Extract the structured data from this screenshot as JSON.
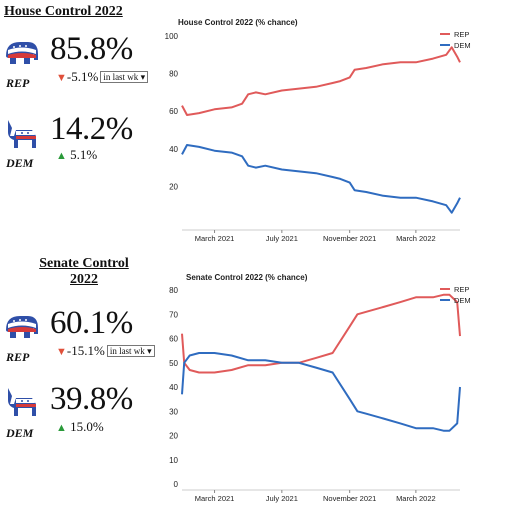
{
  "house": {
    "title": "House Control 2022",
    "rep": {
      "label": "REP",
      "pct": "85.8%",
      "delta": "-5.1%",
      "select": "in last wk"
    },
    "dem": {
      "label": "DEM",
      "pct": "14.2%",
      "delta": "5.1%"
    }
  },
  "senate": {
    "title_line1": "Senate Control",
    "title_line2": "2022",
    "rep": {
      "label": "REP",
      "pct": "60.1%",
      "delta": "-15.1%",
      "select": "in last wk"
    },
    "dem": {
      "label": "DEM",
      "pct": "39.8%",
      "delta": "15.0%"
    }
  },
  "colors": {
    "rep": "#e05a5a",
    "dem": "#2f6cc0",
    "down": "#e0503a",
    "up": "#2a9a3a"
  },
  "icons": {
    "rep": "elephant-icon",
    "dem": "donkey-icon"
  },
  "chart_data": [
    {
      "type": "line",
      "title": "House Control 2022 (% chance)",
      "xlabel": "",
      "ylabel": "",
      "x_ticks": [
        "March 2021",
        "July 2021",
        "November 2021",
        "March 2022"
      ],
      "x_domain": [
        "2021-01-01",
        "2022-05-20"
      ],
      "ylim": [
        0,
        100
      ],
      "yticks": [
        20,
        40,
        60,
        80,
        100
      ],
      "legend": "top-right",
      "series": [
        {
          "name": "REP",
          "color": "#e05a5a",
          "points": [
            [
              "2021-01-01",
              63
            ],
            [
              "2021-01-10",
              58
            ],
            [
              "2021-02-01",
              59
            ],
            [
              "2021-03-01",
              61
            ],
            [
              "2021-04-01",
              62
            ],
            [
              "2021-04-20",
              64
            ],
            [
              "2021-05-01",
              69
            ],
            [
              "2021-05-15",
              70
            ],
            [
              "2021-06-01",
              69
            ],
            [
              "2021-07-01",
              71
            ],
            [
              "2021-08-01",
              72
            ],
            [
              "2021-09-01",
              73
            ],
            [
              "2021-10-01",
              75
            ],
            [
              "2021-10-15",
              76
            ],
            [
              "2021-11-01",
              78
            ],
            [
              "2021-11-10",
              82
            ],
            [
              "2021-12-01",
              83
            ],
            [
              "2022-01-01",
              85
            ],
            [
              "2022-02-01",
              86
            ],
            [
              "2022-03-01",
              86
            ],
            [
              "2022-04-01",
              88
            ],
            [
              "2022-04-25",
              90
            ],
            [
              "2022-05-05",
              94
            ],
            [
              "2022-05-15",
              89
            ],
            [
              "2022-05-20",
              86
            ]
          ]
        },
        {
          "name": "DEM",
          "color": "#2f6cc0",
          "points": [
            [
              "2021-01-01",
              37
            ],
            [
              "2021-01-10",
              42
            ],
            [
              "2021-02-01",
              41
            ],
            [
              "2021-03-01",
              39
            ],
            [
              "2021-04-01",
              38
            ],
            [
              "2021-04-20",
              36
            ],
            [
              "2021-05-01",
              31
            ],
            [
              "2021-05-15",
              30
            ],
            [
              "2021-06-01",
              31
            ],
            [
              "2021-07-01",
              29
            ],
            [
              "2021-08-01",
              28
            ],
            [
              "2021-09-01",
              27
            ],
            [
              "2021-10-01",
              25
            ],
            [
              "2021-10-15",
              24
            ],
            [
              "2021-11-01",
              22
            ],
            [
              "2021-11-10",
              18
            ],
            [
              "2021-12-01",
              17
            ],
            [
              "2022-01-01",
              15
            ],
            [
              "2022-02-01",
              14
            ],
            [
              "2022-03-01",
              14
            ],
            [
              "2022-04-01",
              12
            ],
            [
              "2022-04-25",
              10
            ],
            [
              "2022-05-05",
              6
            ],
            [
              "2022-05-15",
              11
            ],
            [
              "2022-05-20",
              14
            ]
          ]
        }
      ]
    },
    {
      "type": "line",
      "title": "Senate Control 2022 (% chance)",
      "xlabel": "",
      "ylabel": "",
      "x_ticks": [
        "March 2021",
        "July 2021",
        "November 2021",
        "March 2022"
      ],
      "x_domain": [
        "2021-01-01",
        "2022-05-20"
      ],
      "ylim": [
        0,
        80
      ],
      "yticks": [
        0,
        10,
        20,
        30,
        40,
        50,
        60,
        70,
        80
      ],
      "legend": "top-right",
      "series": [
        {
          "name": "REP",
          "color": "#e05a5a",
          "points": [
            [
              "2021-01-01",
              62
            ],
            [
              "2021-01-05",
              50
            ],
            [
              "2021-01-15",
              47
            ],
            [
              "2021-02-01",
              46
            ],
            [
              "2021-03-01",
              46
            ],
            [
              "2021-04-01",
              47
            ],
            [
              "2021-05-01",
              49
            ],
            [
              "2021-06-01",
              49
            ],
            [
              "2021-07-01",
              50
            ],
            [
              "2021-08-01",
              50
            ],
            [
              "2021-09-01",
              52
            ],
            [
              "2021-10-01",
              54
            ],
            [
              "2021-11-01",
              65
            ],
            [
              "2021-11-15",
              70
            ],
            [
              "2021-12-01",
              71
            ],
            [
              "2022-01-01",
              73
            ],
            [
              "2022-02-01",
              75
            ],
            [
              "2022-03-01",
              77
            ],
            [
              "2022-04-01",
              77
            ],
            [
              "2022-04-20",
              78
            ],
            [
              "2022-05-01",
              78
            ],
            [
              "2022-05-15",
              75
            ],
            [
              "2022-05-20",
              61
            ]
          ]
        },
        {
          "name": "DEM",
          "color": "#2f6cc0",
          "points": [
            [
              "2021-01-01",
              37
            ],
            [
              "2021-01-05",
              50
            ],
            [
              "2021-01-15",
              53
            ],
            [
              "2021-02-01",
              54
            ],
            [
              "2021-03-01",
              54
            ],
            [
              "2021-04-01",
              53
            ],
            [
              "2021-05-01",
              51
            ],
            [
              "2021-06-01",
              51
            ],
            [
              "2021-07-01",
              50
            ],
            [
              "2021-08-01",
              50
            ],
            [
              "2021-09-01",
              48
            ],
            [
              "2021-10-01",
              46
            ],
            [
              "2021-11-01",
              35
            ],
            [
              "2021-11-15",
              30
            ],
            [
              "2021-12-01",
              29
            ],
            [
              "2022-01-01",
              27
            ],
            [
              "2022-02-01",
              25
            ],
            [
              "2022-03-01",
              23
            ],
            [
              "2022-04-01",
              23
            ],
            [
              "2022-04-20",
              22
            ],
            [
              "2022-05-01",
              22
            ],
            [
              "2022-05-15",
              25
            ],
            [
              "2022-05-20",
              40
            ]
          ]
        }
      ]
    }
  ]
}
